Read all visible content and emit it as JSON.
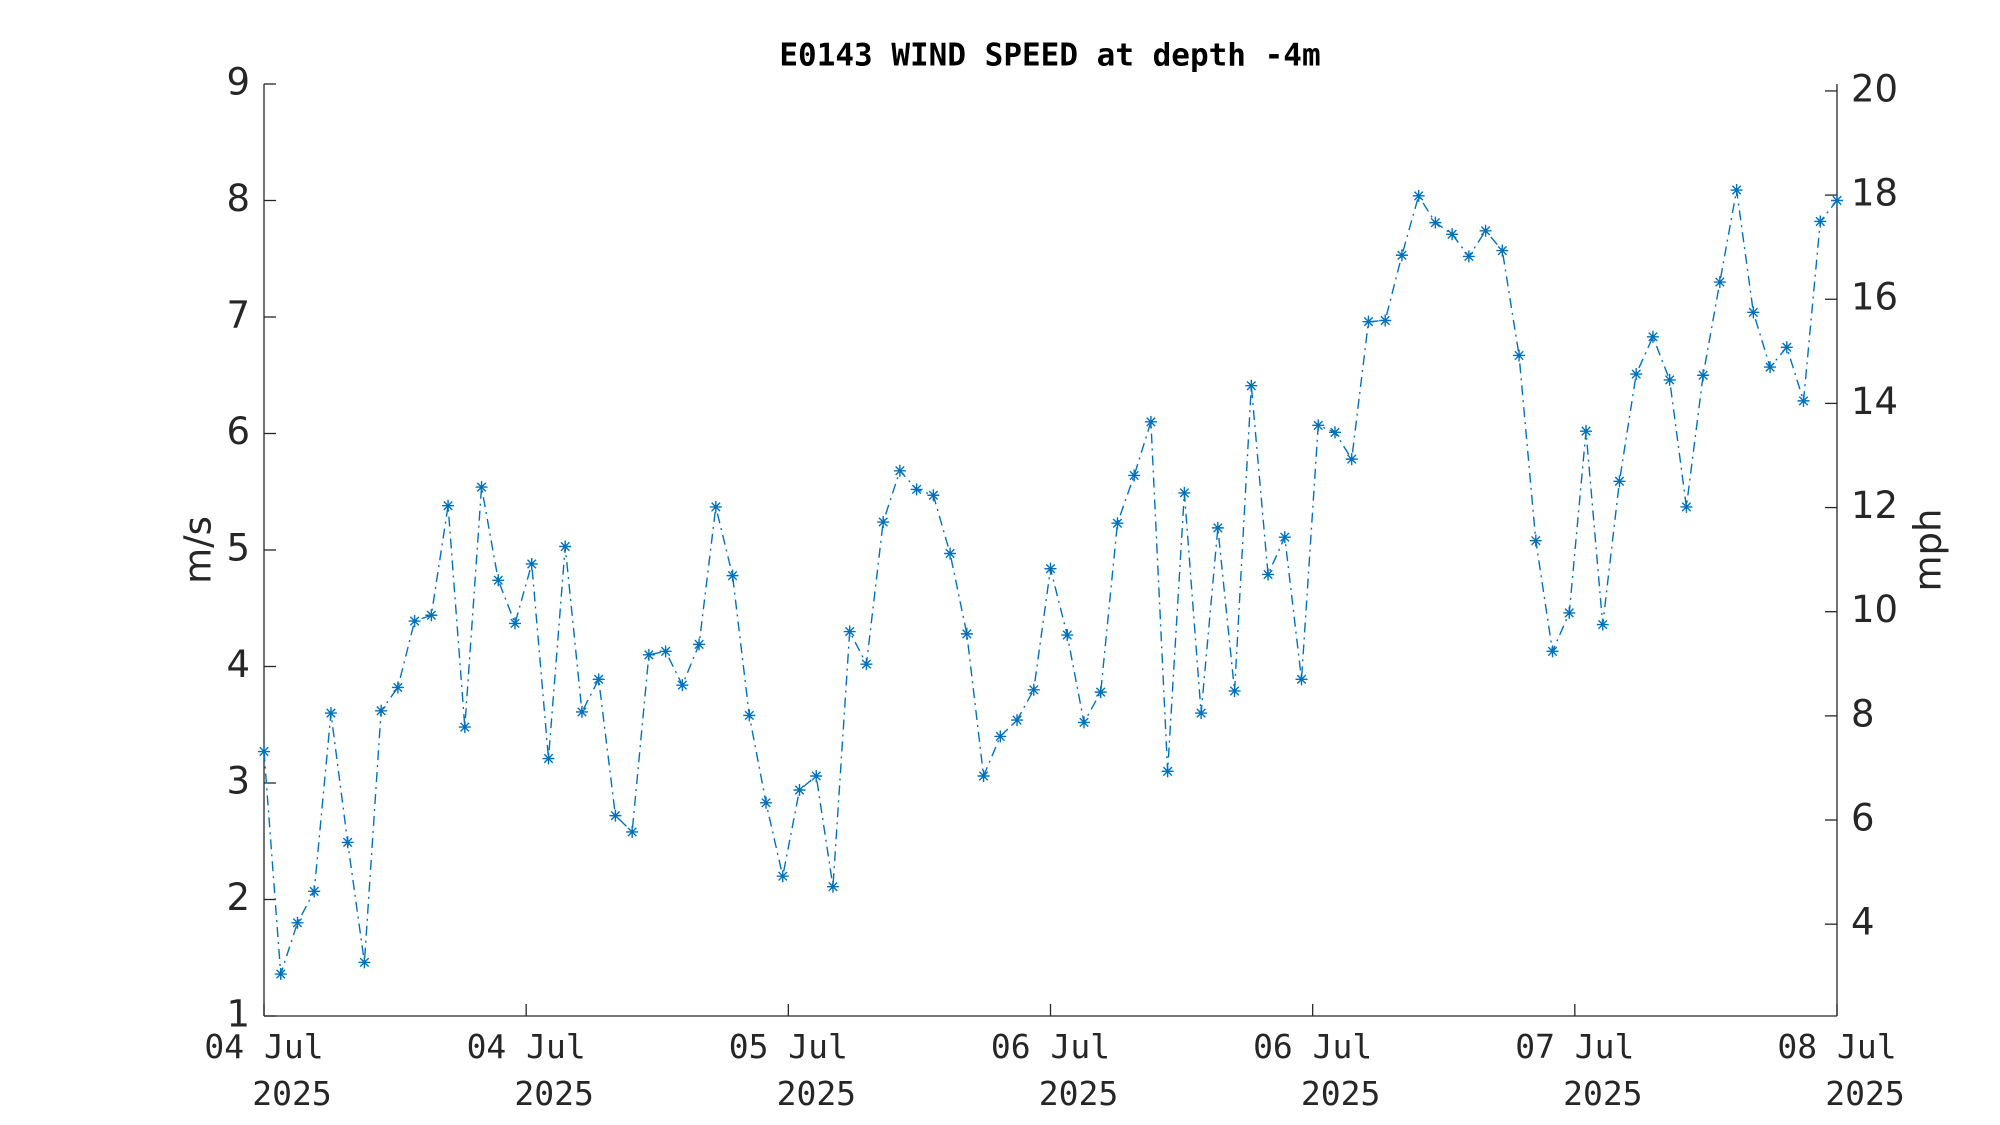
{
  "chart_data": {
    "type": "line",
    "title": "E0143 WIND SPEED at depth -4m",
    "y_label": "m/s",
    "y2_label": "mph",
    "categories": [
      null,
      null,
      null,
      null,
      null,
      null,
      null,
      null,
      null,
      null,
      null,
      null,
      null,
      null,
      null,
      null,
      null,
      null,
      null,
      null,
      null,
      null,
      null,
      null,
      null,
      null,
      null,
      null,
      null,
      null,
      null,
      null,
      null,
      null,
      null,
      null,
      null,
      null,
      null,
      null,
      null,
      null,
      null,
      null,
      null,
      null,
      null,
      null,
      null,
      null,
      null,
      null,
      null,
      null,
      null,
      null,
      null,
      null,
      null,
      null,
      null,
      null,
      null,
      null,
      null,
      null,
      null,
      null,
      null,
      null,
      null,
      null,
      null,
      null,
      null,
      null,
      null,
      null,
      null,
      null,
      null,
      null,
      null,
      null,
      null,
      null,
      null,
      null,
      null,
      null,
      null,
      null,
      null,
      null,
      null
    ],
    "series": [
      {
        "color": "#0072bd",
        "values": [
          3.27,
          1.36,
          1.8,
          2.07,
          3.6,
          2.49,
          1.46,
          3.62,
          3.82,
          4.39,
          4.44,
          5.38,
          3.48,
          5.54,
          4.74,
          4.37,
          4.88,
          3.21,
          5.03,
          3.61,
          3.89,
          2.72,
          2.58,
          4.1,
          4.13,
          3.84,
          4.19,
          5.37,
          4.78,
          3.58,
          2.83,
          2.2,
          2.94,
          3.06,
          2.11,
          4.3,
          4.02,
          5.24,
          5.68,
          5.52,
          5.47,
          4.97,
          4.28,
          3.06,
          3.4,
          3.54,
          3.8,
          4.84,
          4.27,
          3.52,
          3.78,
          5.23,
          5.64,
          6.1,
          3.1,
          5.49,
          3.6,
          5.19,
          3.79,
          6.41,
          4.79,
          5.11,
          3.89,
          6.07,
          6.01,
          5.78,
          6.96,
          6.97,
          7.53,
          8.04,
          7.81,
          7.71,
          7.52,
          7.74,
          7.57,
          6.67,
          5.08,
          4.13,
          4.46,
          6.02,
          4.36,
          5.59,
          6.51,
          6.83,
          6.46,
          5.37,
          6.5,
          7.3,
          8.09,
          7.04,
          6.57,
          6.74,
          6.28,
          7.82,
          8.0
        ]
      }
    ],
    "xlim": [
      0,
      94
    ],
    "xticks": [
      {
        "value": 0,
        "label": "04 Jul\n2025"
      },
      {
        "value": 15.667,
        "label": "04 Jul\n2025"
      },
      {
        "value": 31.333,
        "label": "05 Jul\n2025"
      },
      {
        "value": 47,
        "label": "06 Jul\n2025"
      },
      {
        "value": 62.667,
        "label": "06 Jul\n2025"
      },
      {
        "value": 78.333,
        "label": "07 Jul\n2025"
      },
      {
        "value": 94,
        "label": "08 Jul\n2025"
      }
    ],
    "ylim": [
      1,
      9
    ],
    "yticks": [
      1,
      2,
      3,
      4,
      5,
      6,
      7,
      8,
      9
    ],
    "y2lim": [
      2.237,
      20.133
    ],
    "y2ticks": [
      4,
      6,
      8,
      10,
      12,
      14,
      16,
      18,
      20
    ],
    "grid": false
  }
}
